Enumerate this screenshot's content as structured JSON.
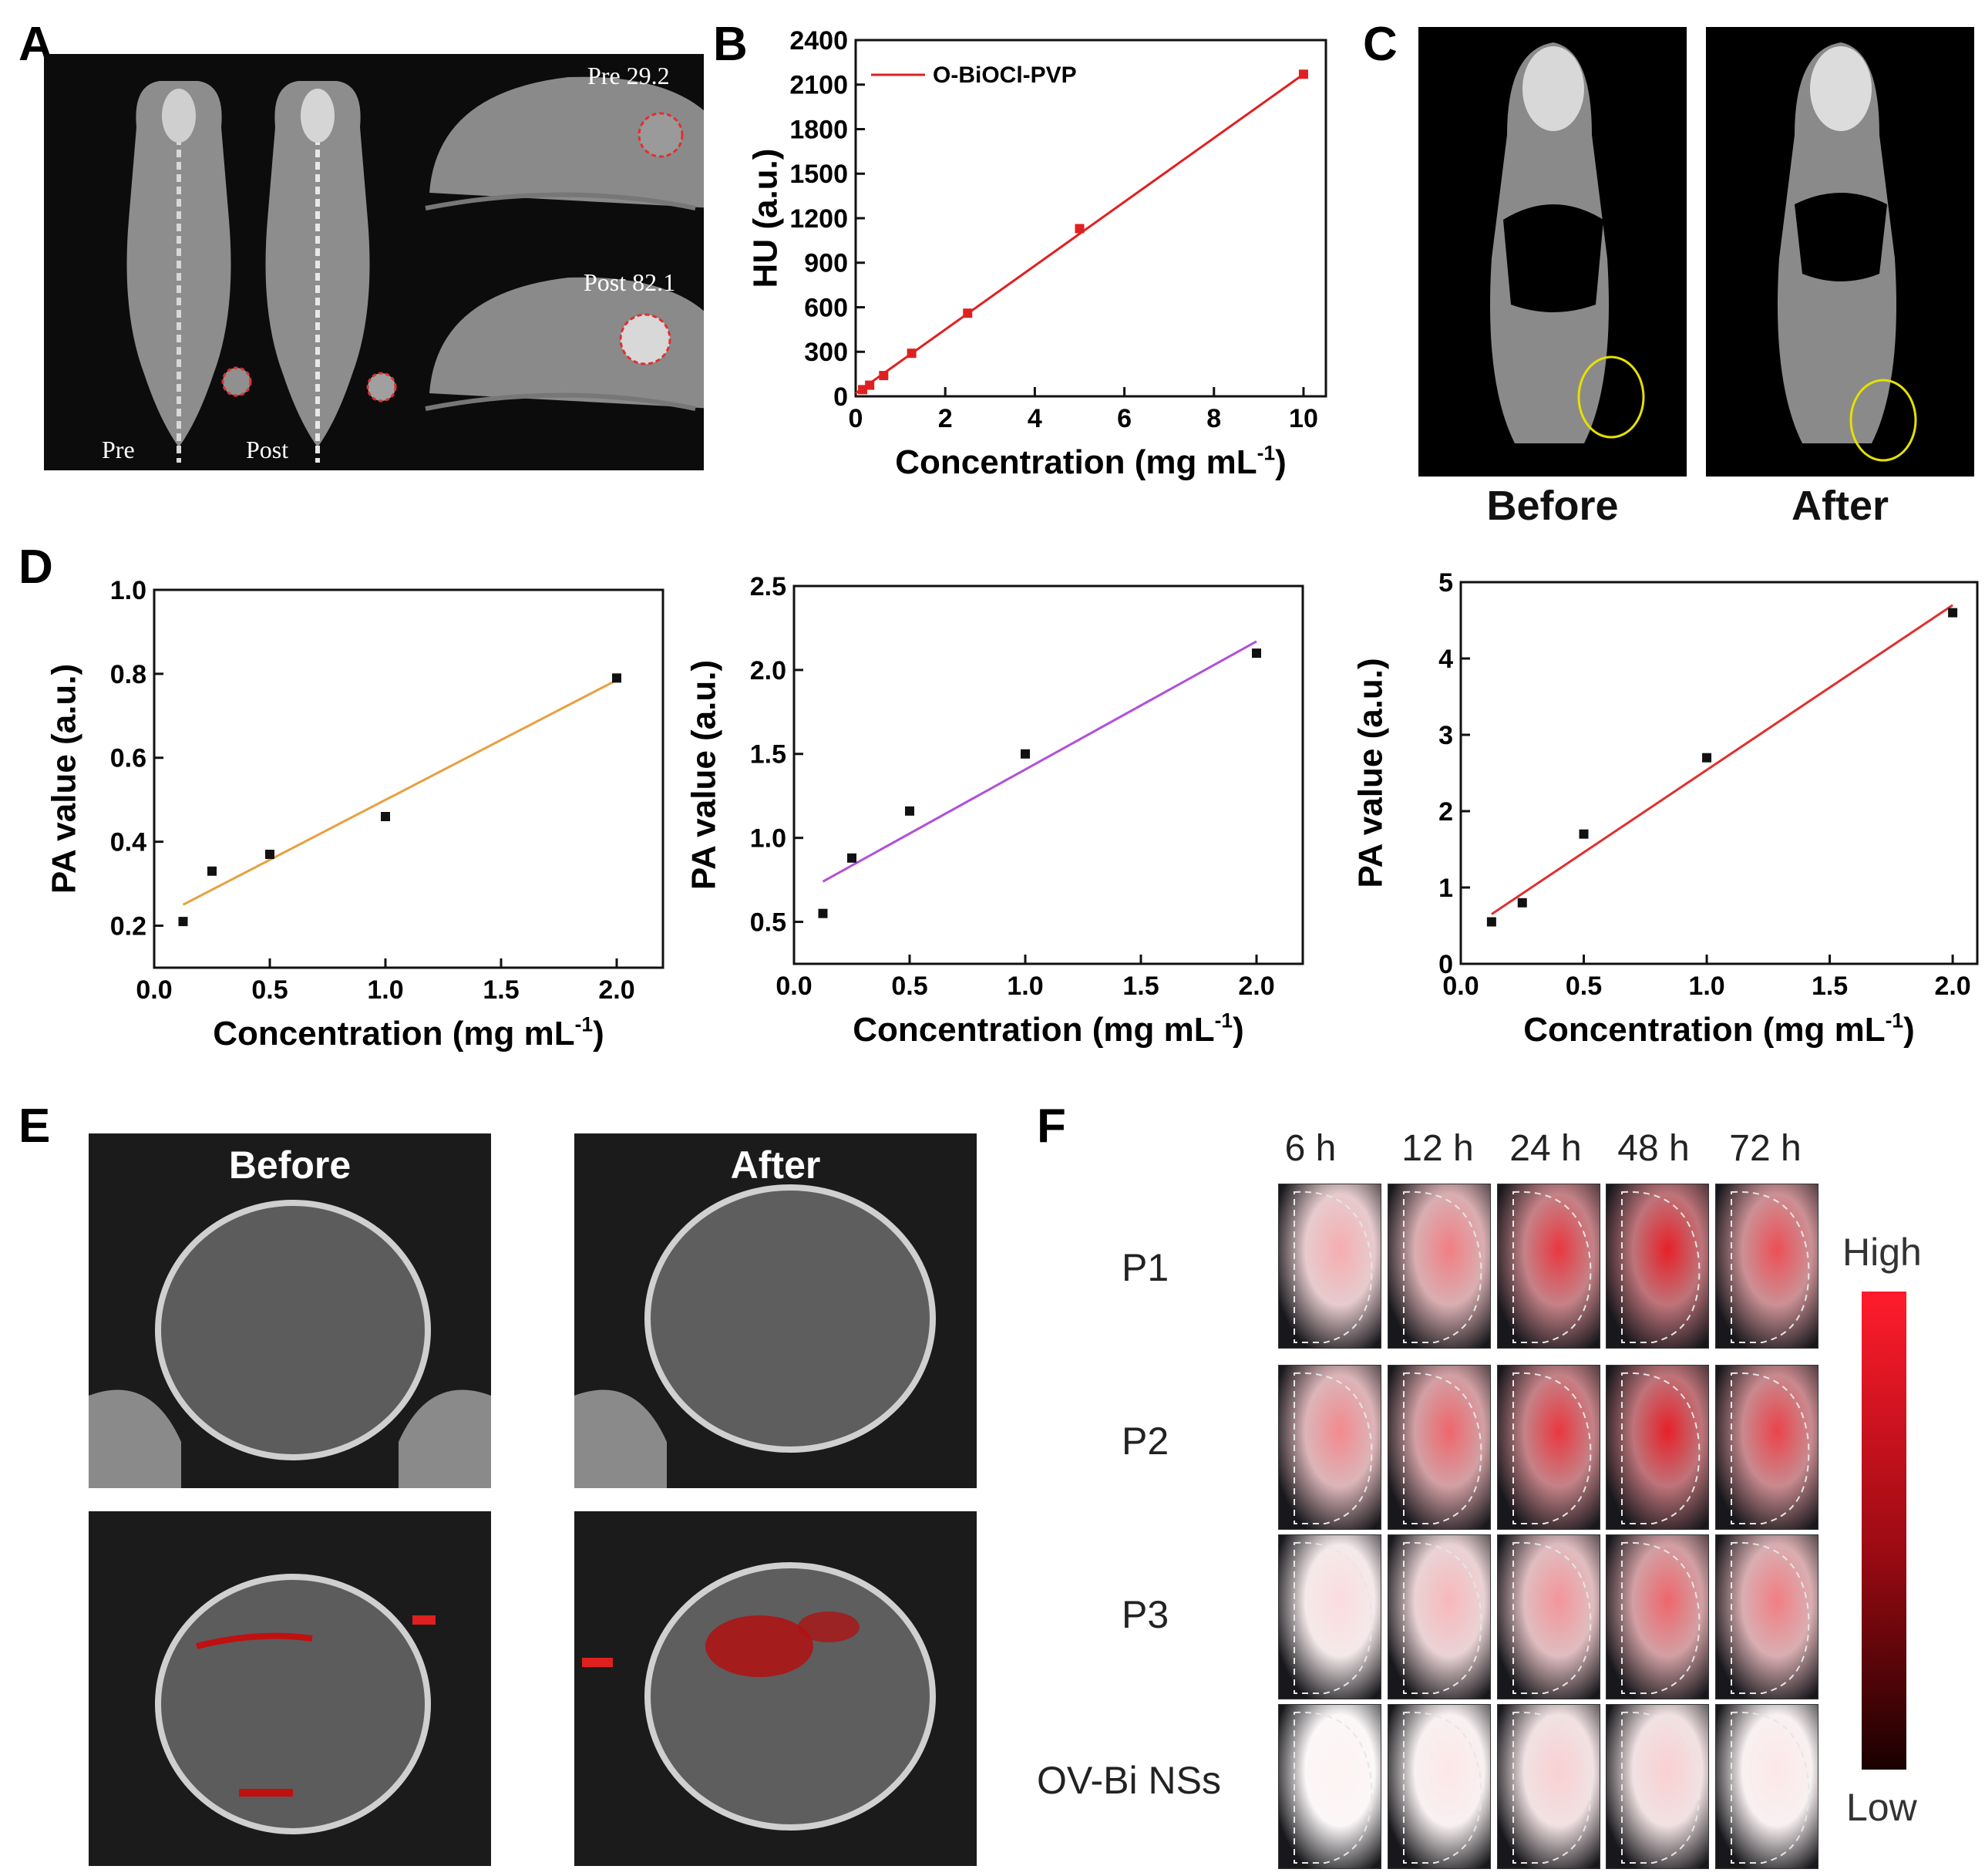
{
  "panels": {
    "A": {
      "label": "A",
      "pre_label": "Pre",
      "post_label": "Post",
      "pre_value": "Pre 29.2",
      "post_value": "Post 82.1"
    },
    "C": {
      "label": "C",
      "before": "Before",
      "after": "After"
    },
    "D": {
      "label": "D"
    },
    "E": {
      "label": "E",
      "before": "Before",
      "after": "After"
    },
    "F": {
      "label": "F",
      "columns": [
        "6 h",
        "12 h",
        "24 h",
        "48 h",
        "72 h"
      ],
      "rows": [
        "P1",
        "P2",
        "P3",
        "OV-Bi NSs"
      ],
      "scale_high": "High",
      "scale_low": "Low"
    }
  },
  "colors": {
    "b_line": "#e02020",
    "d1_line": "#e8a040",
    "d2_line": "#b050d8",
    "d3_line": "#e03030",
    "marker": "#111111"
  },
  "chart_data": [
    {
      "id": "B",
      "panel_label": "B",
      "type": "line",
      "legend": "O-BiOCl-PVP",
      "xlabel": "Concentration",
      "xunit": "mg mL",
      "xunit_exp": "-1",
      "ylabel": "HU (a.u.)",
      "xlim": [
        0,
        10.5
      ],
      "ylim": [
        0,
        2400
      ],
      "xticks": [
        "0",
        "2",
        "4",
        "6",
        "8",
        "10"
      ],
      "yticks": [
        "0",
        "300",
        "600",
        "900",
        "1200",
        "1500",
        "1800",
        "2100",
        "2400"
      ],
      "x": [
        0.156,
        0.3125,
        0.625,
        1.25,
        2.5,
        5,
        10
      ],
      "y": [
        45,
        75,
        140,
        290,
        560,
        1130,
        2170
      ],
      "fit": [
        [
          0,
          20
        ],
        [
          10,
          2170
        ]
      ]
    },
    {
      "id": "D1",
      "type": "scatter",
      "xlabel": "Concentration",
      "xunit": "mg mL",
      "xunit_exp": "-1",
      "ylabel": "PA value (a.u.)",
      "xlim": [
        0,
        2.2
      ],
      "ylim": [
        0.1,
        1.0
      ],
      "xticks": [
        "0.0",
        "0.5",
        "1.0",
        "1.5",
        "2.0"
      ],
      "yticks": [
        "0.2",
        "0.4",
        "0.6",
        "0.8",
        "1.0"
      ],
      "x": [
        0.125,
        0.25,
        0.5,
        1.0,
        2.0
      ],
      "y": [
        0.21,
        0.33,
        0.37,
        0.46,
        0.79
      ],
      "fit": [
        [
          0.125,
          0.25
        ],
        [
          2.0,
          0.785
        ]
      ]
    },
    {
      "id": "D2",
      "type": "scatter",
      "xlabel": "Concentration",
      "xunit": "mg mL",
      "xunit_exp": "-1",
      "ylabel": "PA value (a.u.)",
      "xlim": [
        0,
        2.2
      ],
      "ylim": [
        0.25,
        2.5
      ],
      "xticks": [
        "0.0",
        "0.5",
        "1.0",
        "1.5",
        "2.0"
      ],
      "yticks": [
        "0.5",
        "1.0",
        "1.5",
        "2.0",
        "2.5"
      ],
      "x": [
        0.125,
        0.25,
        0.5,
        1.0,
        2.0
      ],
      "y": [
        0.55,
        0.88,
        1.16,
        1.5,
        2.1
      ],
      "fit": [
        [
          0.125,
          0.74
        ],
        [
          2.0,
          2.17
        ]
      ]
    },
    {
      "id": "D3",
      "type": "scatter",
      "xlabel": "Concentration",
      "xunit": "mg mL",
      "xunit_exp": "-1",
      "ylabel": "PA value (a.u.)",
      "xlim": [
        0,
        2.1
      ],
      "ylim": [
        0,
        5
      ],
      "xticks": [
        "0.0",
        "0.5",
        "1.0",
        "1.5",
        "2.0"
      ],
      "yticks": [
        "0",
        "1",
        "2",
        "3",
        "4",
        "5"
      ],
      "x": [
        0.125,
        0.25,
        0.5,
        1.0,
        2.0
      ],
      "y": [
        0.55,
        0.8,
        1.7,
        2.7,
        4.6
      ],
      "fit": [
        [
          0.125,
          0.65
        ],
        [
          2.0,
          4.7
        ]
      ]
    }
  ]
}
